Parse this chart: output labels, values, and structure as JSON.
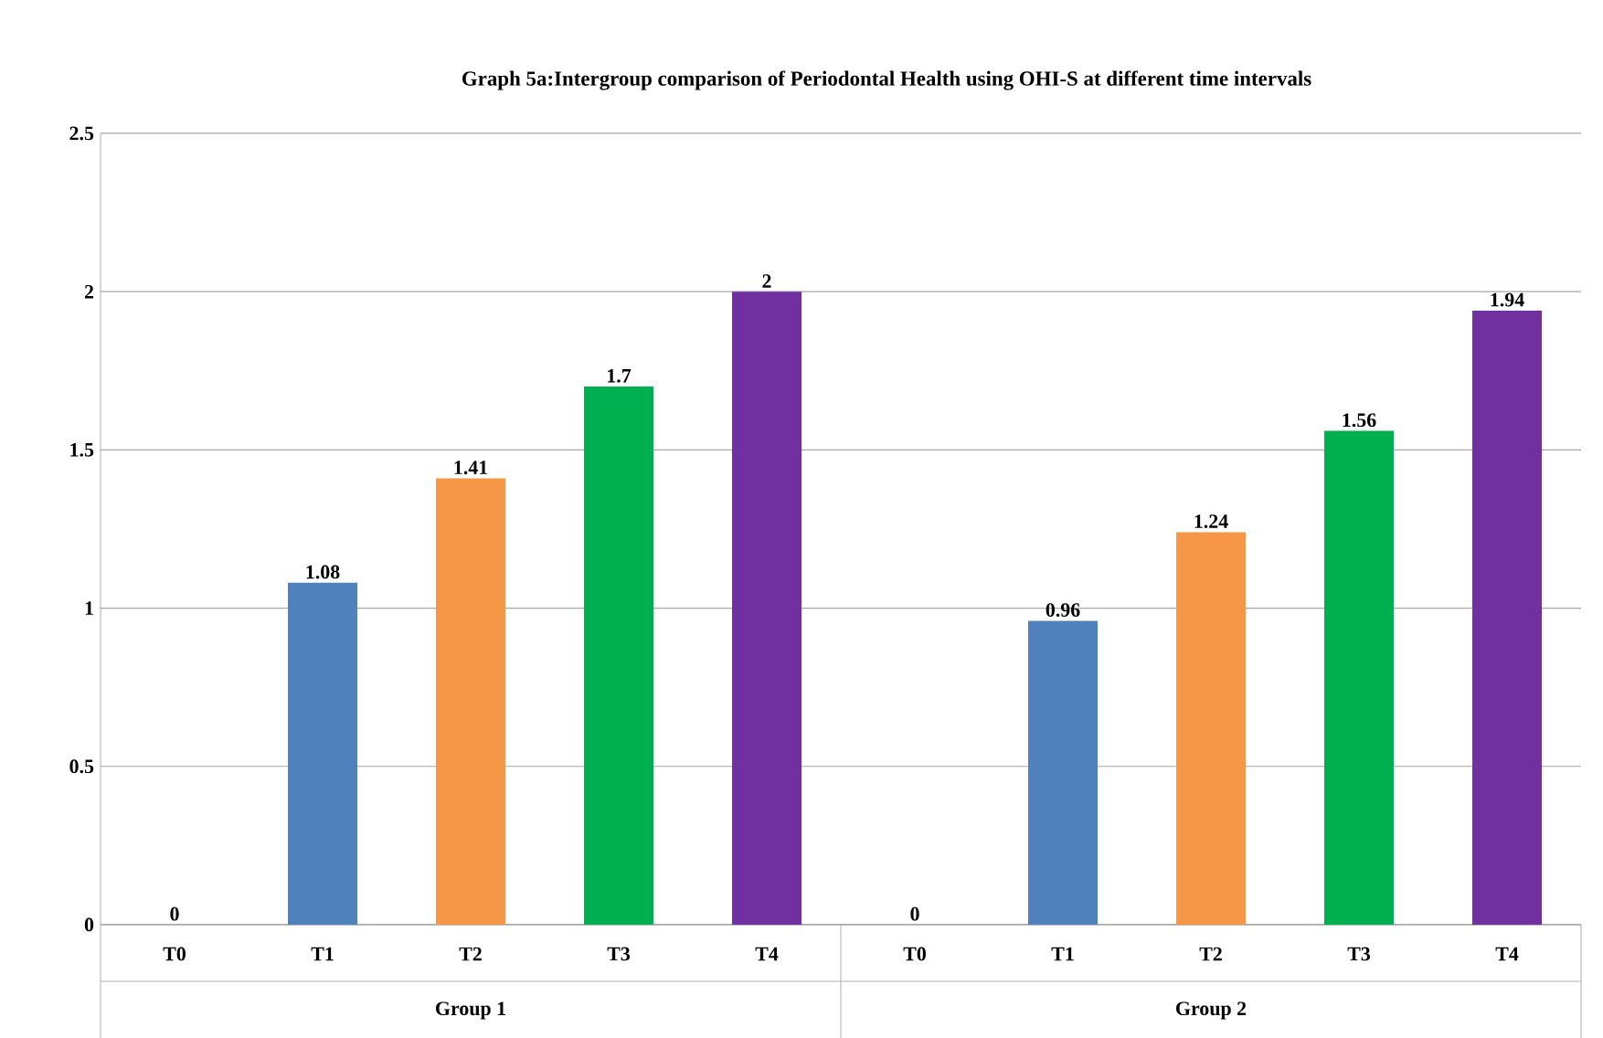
{
  "chart_data": {
    "type": "bar",
    "title": "Graph 5a:Intergroup comparison of Periodontal Health using OHI-S at different time intervals",
    "categories": [
      "T0",
      "T1",
      "T2",
      "T3",
      "T4",
      "T0",
      "T1",
      "T2",
      "T3",
      "T4"
    ],
    "values": [
      0,
      1.08,
      1.41,
      1.7,
      2,
      0,
      0.96,
      1.24,
      1.56,
      1.94
    ],
    "colors": [
      null,
      "#4f81bd",
      "#f79646",
      "#00b050",
      "#7030a0",
      null,
      "#4f81bd",
      "#f79646",
      "#00b050",
      "#7030a0"
    ],
    "annotations": [
      "Group 1",
      "Group 2"
    ],
    "ylim": [
      0,
      2.5
    ],
    "yticks": [
      0,
      0.5,
      1,
      1.5,
      2,
      2.5
    ],
    "grid": "y",
    "data_labels": true
  }
}
